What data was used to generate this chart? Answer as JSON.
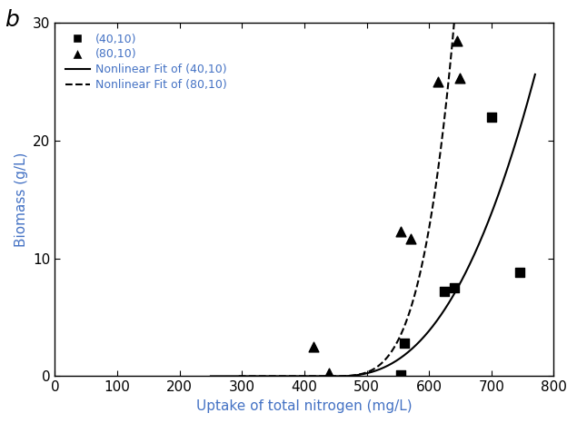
{
  "title_label": "b",
  "xlabel": "Uptake of total nitrogen (mg/L)",
  "ylabel": "Biomass (g/L)",
  "xlim": [
    0,
    800
  ],
  "ylim": [
    0,
    30
  ],
  "xticks": [
    0,
    100,
    200,
    300,
    400,
    500,
    600,
    700,
    800
  ],
  "yticks": [
    0,
    10,
    20,
    30
  ],
  "scatter_40_10_x": [
    555,
    560,
    625,
    640,
    700,
    745
  ],
  "scatter_40_10_y": [
    0.15,
    2.8,
    7.2,
    7.5,
    22.0,
    8.8
  ],
  "scatter_80_10_x": [
    415,
    440,
    555,
    570,
    615,
    645,
    650
  ],
  "scatter_80_10_y": [
    2.5,
    0.3,
    12.3,
    11.7,
    25.0,
    28.5,
    25.3
  ],
  "legend_labels": [
    "(40,10)",
    "(80,10)",
    "Nonlinear Fit of (40,10)",
    "Nonlinear Fit of (80,10)"
  ],
  "marker_color": "black",
  "line_color": "black",
  "label_color": "#4472C4",
  "background_color": "#ffffff",
  "font_size": 11,
  "tick_font_size": 11,
  "fit_40_a": 2.5e-13,
  "fit_40_b": 5.0,
  "fit_40_x0": 0,
  "fit_40_xstart": 250,
  "fit_40_xend": 770,
  "fit_80_a": 1.8e-11,
  "fit_80_b": 4.5,
  "fit_80_x0": 0,
  "fit_80_xstart": 295,
  "fit_80_xend": 655
}
